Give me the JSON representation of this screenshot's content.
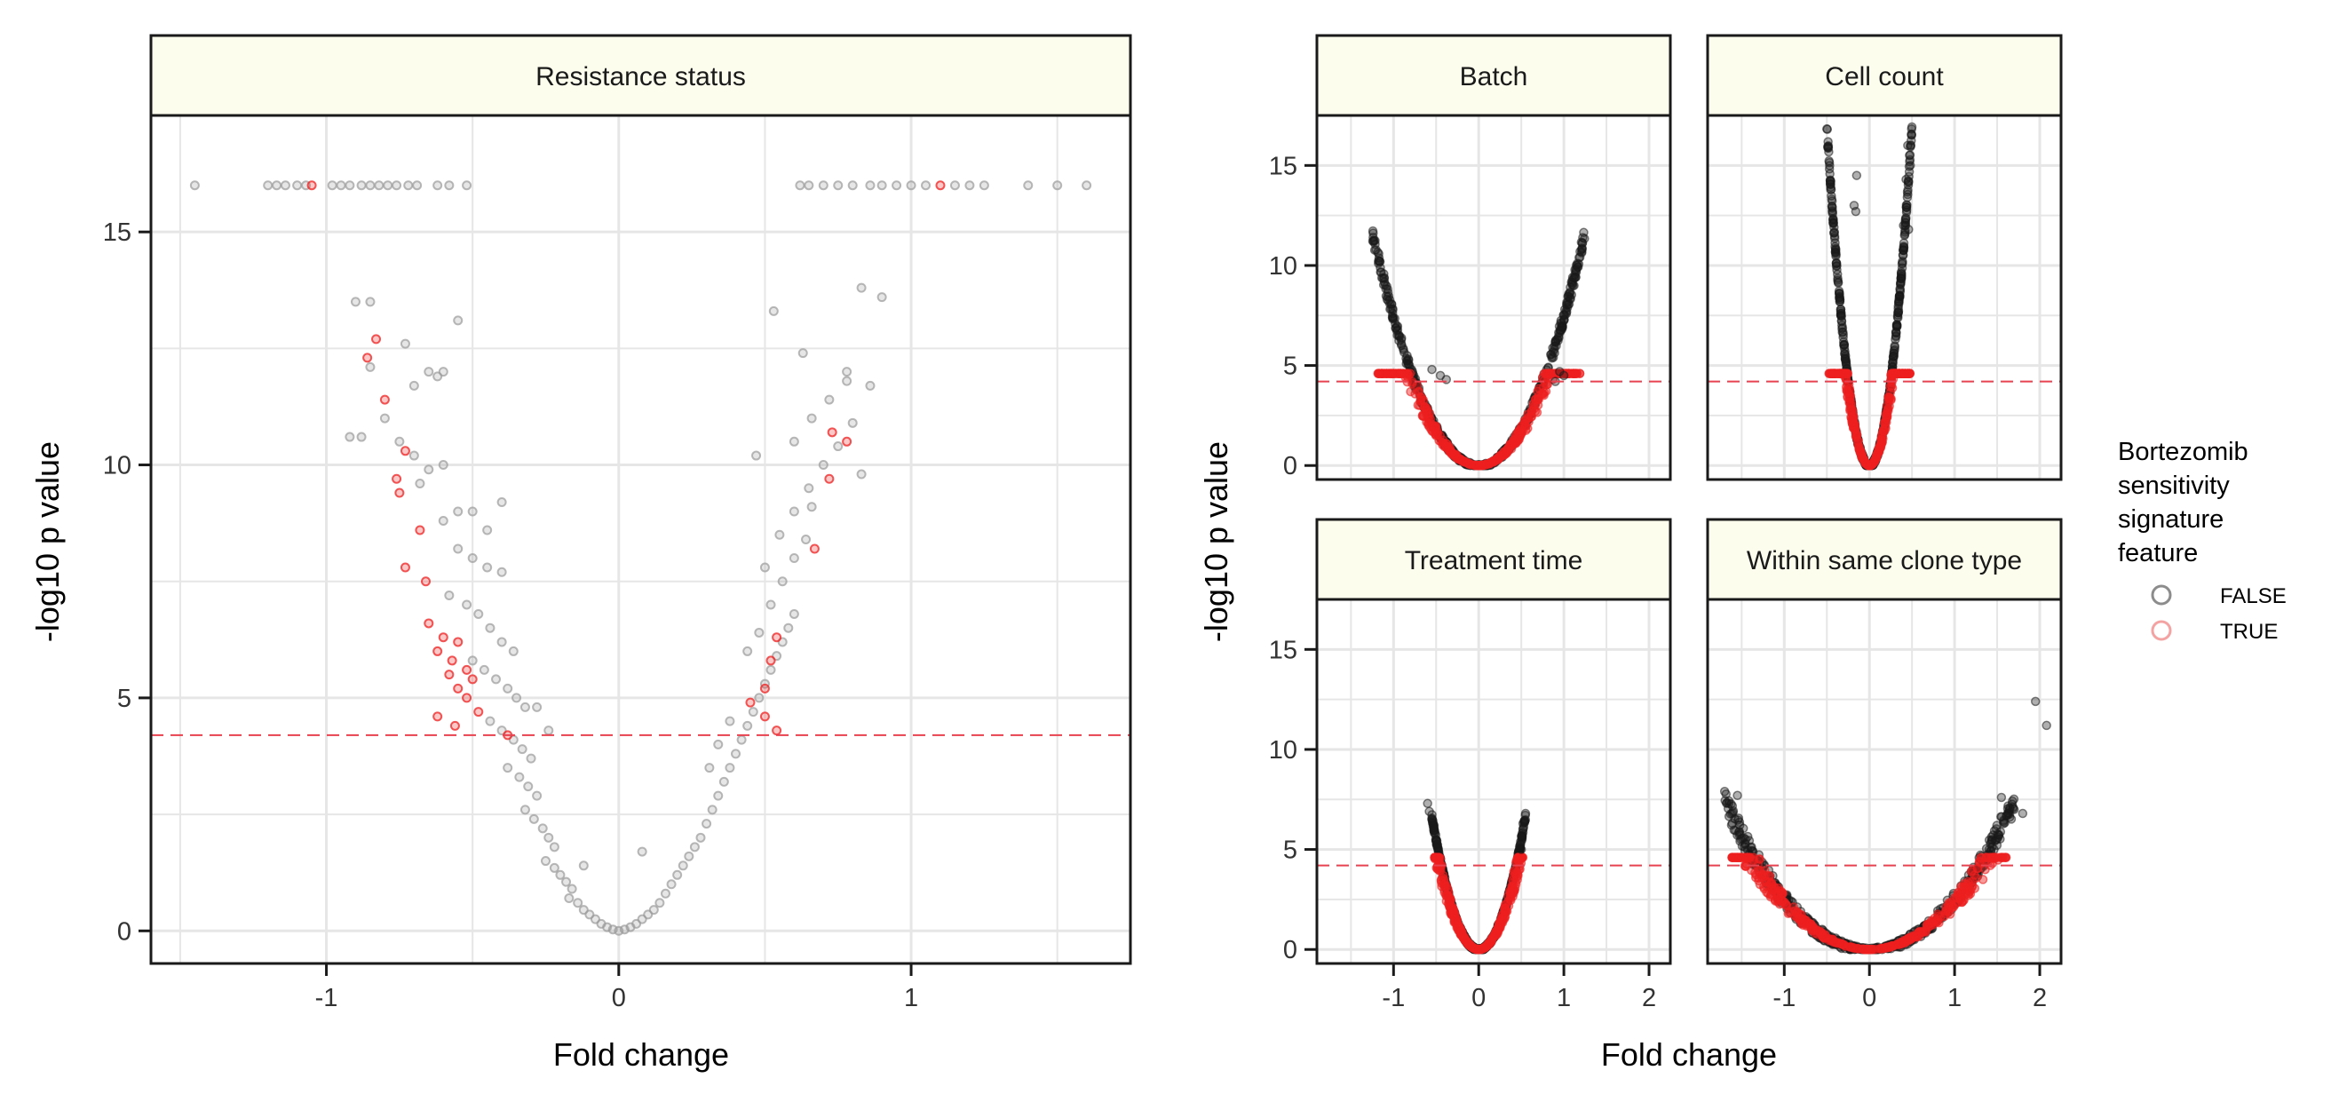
{
  "figure": {
    "x_title": "Fold change",
    "y_title": "-log10 p value"
  },
  "legend": {
    "title_lines": [
      "Bortezomib",
      "sensitivity",
      "signature",
      "feature"
    ],
    "items": [
      {
        "label": "FALSE",
        "color": "#8c8c8c"
      },
      {
        "label": "TRUE",
        "color": "#f4a3a3"
      }
    ]
  },
  "colors": {
    "strip_fill": "#fdfdee",
    "grid": "#e6e6e6",
    "threshold": "#e8414f",
    "false_light": "#9a9a9a",
    "false_dark": "#1a1a1a",
    "true": "#ee2020"
  },
  "chart_data": [
    {
      "type": "scatter",
      "title": "Resistance status",
      "xlim": [
        -1.6,
        1.75
      ],
      "ylim": [
        -0.7,
        17.5
      ],
      "xticks": [
        -1,
        0,
        1
      ],
      "yticks": [
        0,
        5,
        10,
        15
      ],
      "threshold_y": 4.2,
      "style": "light",
      "series": [
        {
          "name": "FALSE",
          "points": [
            [
              -1.45,
              16
            ],
            [
              -1.2,
              16
            ],
            [
              -1.17,
              16
            ],
            [
              -1.14,
              16
            ],
            [
              -1.1,
              16
            ],
            [
              -1.07,
              16
            ],
            [
              -0.98,
              16
            ],
            [
              -0.95,
              16
            ],
            [
              -0.92,
              16
            ],
            [
              -0.88,
              16
            ],
            [
              -0.85,
              16
            ],
            [
              -0.82,
              16
            ],
            [
              -0.79,
              16
            ],
            [
              -0.76,
              16
            ],
            [
              -0.72,
              16
            ],
            [
              -0.69,
              16
            ],
            [
              -0.62,
              16
            ],
            [
              -0.58,
              16
            ],
            [
              -0.52,
              16
            ],
            [
              0.62,
              16
            ],
            [
              0.65,
              16
            ],
            [
              0.7,
              16
            ],
            [
              0.75,
              16
            ],
            [
              0.8,
              16
            ],
            [
              0.86,
              16
            ],
            [
              0.9,
              16
            ],
            [
              0.95,
              16
            ],
            [
              1.0,
              16
            ],
            [
              1.05,
              16
            ],
            [
              1.15,
              16
            ],
            [
              1.2,
              16
            ],
            [
              1.25,
              16
            ],
            [
              1.4,
              16
            ],
            [
              1.5,
              16
            ],
            [
              1.6,
              16
            ],
            [
              -0.9,
              13.5
            ],
            [
              -0.85,
              13.5
            ],
            [
              -0.55,
              13.1
            ],
            [
              -0.92,
              10.6
            ],
            [
              -0.88,
              10.6
            ],
            [
              0.9,
              13.6
            ],
            [
              0.83,
              13.8
            ],
            [
              0.53,
              13.3
            ],
            [
              0.47,
              10.2
            ],
            [
              0.63,
              12.4
            ],
            [
              0.78,
              12.0
            ],
            [
              0.86,
              11.7
            ],
            [
              -0.85,
              12.1
            ],
            [
              -0.8,
              11.0
            ],
            [
              -0.73,
              12.6
            ],
            [
              -0.7,
              11.7
            ],
            [
              -0.65,
              12.0
            ],
            [
              -0.62,
              11.9
            ],
            [
              -0.6,
              12.0
            ],
            [
              -0.75,
              10.5
            ],
            [
              -0.7,
              10.2
            ],
            [
              -0.65,
              9.9
            ],
            [
              -0.6,
              10.0
            ],
            [
              -0.55,
              9.0
            ],
            [
              -0.5,
              9.0
            ],
            [
              -0.45,
              8.6
            ],
            [
              -0.4,
              9.2
            ],
            [
              -0.68,
              9.6
            ],
            [
              -0.6,
              8.8
            ],
            [
              -0.55,
              8.2
            ],
            [
              -0.5,
              8.0
            ],
            [
              -0.45,
              7.8
            ],
            [
              -0.4,
              7.7
            ],
            [
              -0.58,
              7.2
            ],
            [
              -0.52,
              7.0
            ],
            [
              -0.48,
              6.8
            ],
            [
              -0.44,
              6.5
            ],
            [
              -0.4,
              6.2
            ],
            [
              -0.36,
              6.0
            ],
            [
              -0.5,
              5.8
            ],
            [
              -0.46,
              5.6
            ],
            [
              -0.42,
              5.4
            ],
            [
              -0.38,
              5.2
            ],
            [
              -0.35,
              5.0
            ],
            [
              -0.32,
              4.8
            ],
            [
              -0.44,
              4.5
            ],
            [
              -0.4,
              4.3
            ],
            [
              -0.36,
              4.1
            ],
            [
              -0.33,
              3.9
            ],
            [
              -0.3,
              3.7
            ],
            [
              -0.38,
              3.5
            ],
            [
              -0.34,
              3.3
            ],
            [
              -0.31,
              3.1
            ],
            [
              -0.28,
              2.9
            ],
            [
              -0.32,
              2.6
            ],
            [
              -0.29,
              2.4
            ],
            [
              -0.26,
              2.2
            ],
            [
              -0.24,
              2.0
            ],
            [
              -0.22,
              1.8
            ],
            [
              -0.25,
              1.5
            ],
            [
              -0.22,
              1.35
            ],
            [
              -0.2,
              1.2
            ],
            [
              -0.18,
              1.05
            ],
            [
              -0.16,
              0.9
            ],
            [
              -0.17,
              0.7
            ],
            [
              -0.14,
              0.6
            ],
            [
              -0.12,
              0.45
            ],
            [
              -0.1,
              0.35
            ],
            [
              -0.08,
              0.25
            ],
            [
              -0.06,
              0.15
            ],
            [
              -0.04,
              0.08
            ],
            [
              -0.02,
              0.03
            ],
            [
              0,
              0.0
            ],
            [
              0.02,
              0.03
            ],
            [
              0.04,
              0.08
            ],
            [
              0.06,
              0.15
            ],
            [
              0.08,
              0.25
            ],
            [
              0.1,
              0.35
            ],
            [
              0.12,
              0.45
            ],
            [
              0.14,
              0.6
            ],
            [
              0.16,
              0.8
            ],
            [
              0.18,
              1.0
            ],
            [
              0.2,
              1.2
            ],
            [
              0.22,
              1.4
            ],
            [
              0.24,
              1.6
            ],
            [
              0.26,
              1.8
            ],
            [
              0.28,
              2.0
            ],
            [
              0.3,
              2.3
            ],
            [
              0.32,
              2.6
            ],
            [
              0.34,
              2.9
            ],
            [
              0.36,
              3.2
            ],
            [
              0.38,
              3.5
            ],
            [
              0.4,
              3.8
            ],
            [
              0.42,
              4.1
            ],
            [
              0.44,
              4.4
            ],
            [
              0.46,
              4.7
            ],
            [
              0.48,
              5.0
            ],
            [
              0.5,
              5.3
            ],
            [
              0.52,
              5.6
            ],
            [
              0.54,
              5.9
            ],
            [
              0.56,
              6.2
            ],
            [
              0.58,
              6.5
            ],
            [
              0.6,
              6.8
            ],
            [
              0.44,
              6.0
            ],
            [
              0.48,
              6.4
            ],
            [
              0.52,
              7.0
            ],
            [
              0.56,
              7.5
            ],
            [
              0.6,
              8.0
            ],
            [
              0.64,
              8.4
            ],
            [
              0.5,
              7.8
            ],
            [
              0.55,
              8.5
            ],
            [
              0.6,
              9.0
            ],
            [
              0.65,
              9.5
            ],
            [
              0.7,
              10.0
            ],
            [
              0.75,
              10.4
            ],
            [
              0.8,
              10.9
            ],
            [
              0.66,
              11.0
            ],
            [
              0.72,
              11.4
            ],
            [
              0.78,
              11.8
            ],
            [
              0.6,
              10.5
            ],
            [
              0.66,
              9.1
            ],
            [
              0.83,
              9.8
            ],
            [
              0.38,
              4.5
            ],
            [
              0.34,
              4.0
            ],
            [
              0.31,
              3.5
            ],
            [
              0.08,
              1.7
            ],
            [
              -0.12,
              1.4
            ],
            [
              -0.28,
              4.8
            ],
            [
              -0.24,
              4.3
            ]
          ]
        },
        {
          "name": "TRUE",
          "points": [
            [
              -1.05,
              16
            ],
            [
              1.1,
              16
            ],
            [
              -0.83,
              12.7
            ],
            [
              -0.86,
              12.3
            ],
            [
              -0.8,
              11.4
            ],
            [
              -0.73,
              10.3
            ],
            [
              -0.76,
              9.7
            ],
            [
              -0.75,
              9.4
            ],
            [
              -0.68,
              8.6
            ],
            [
              -0.73,
              7.8
            ],
            [
              -0.66,
              7.5
            ],
            [
              -0.65,
              6.6
            ],
            [
              -0.6,
              6.3
            ],
            [
              -0.55,
              6.2
            ],
            [
              -0.62,
              6.0
            ],
            [
              -0.57,
              5.8
            ],
            [
              -0.52,
              5.6
            ],
            [
              -0.58,
              5.5
            ],
            [
              -0.5,
              5.4
            ],
            [
              -0.55,
              5.2
            ],
            [
              -0.52,
              5.0
            ],
            [
              -0.48,
              4.7
            ],
            [
              -0.62,
              4.6
            ],
            [
              -0.56,
              4.4
            ],
            [
              -0.38,
              4.2
            ],
            [
              0.73,
              10.7
            ],
            [
              0.78,
              10.5
            ],
            [
              0.72,
              9.7
            ],
            [
              0.54,
              6.3
            ],
            [
              0.52,
              5.8
            ],
            [
              0.5,
              5.2
            ],
            [
              0.45,
              4.9
            ],
            [
              0.5,
              4.6
            ],
            [
              0.54,
              4.3
            ],
            [
              0.67,
              8.2
            ]
          ]
        }
      ]
    },
    {
      "type": "scatter",
      "title": "Batch",
      "xlim": [
        -1.9,
        2.25
      ],
      "ylim": [
        -0.7,
        17.5
      ],
      "xticks": [
        -1,
        0,
        1,
        2
      ],
      "yticks": [
        0,
        5,
        10,
        15
      ],
      "threshold_y": 4.2,
      "style": "dark",
      "curve": {
        "k": 7.5,
        "spread_x": 1.25,
        "noise": 0.5
      },
      "extremes": [
        [
          -0.55,
          4.8
        ],
        [
          -0.45,
          4.5
        ],
        [
          -0.38,
          4.3
        ],
        [
          0.95,
          4.7
        ],
        [
          1.0,
          4.5
        ],
        [
          0.9,
          4.2
        ]
      ]
    },
    {
      "type": "scatter",
      "title": "Cell count",
      "xlim": [
        -1.9,
        2.25
      ],
      "ylim": [
        -0.7,
        17.5
      ],
      "xticks": [
        -1,
        0,
        1,
        2
      ],
      "yticks": [
        0,
        5,
        10,
        15
      ],
      "threshold_y": 4.2,
      "style": "dark",
      "curve": {
        "k": 68,
        "spread_x": 0.5,
        "noise": 0.6
      },
      "extremes": [
        [
          -0.15,
          14.5
        ],
        [
          0.45,
          16.0
        ],
        [
          0.47,
          15.5
        ],
        [
          0.48,
          15.0
        ],
        [
          0.43,
          14.3
        ],
        [
          0.46,
          11.8
        ],
        [
          -0.18,
          13.0
        ],
        [
          -0.16,
          12.7
        ],
        [
          0.4,
          12.0
        ]
      ]
    },
    {
      "type": "scatter",
      "title": "Treatment time",
      "xlim": [
        -1.9,
        2.25
      ],
      "ylim": [
        -0.7,
        17.5
      ],
      "xticks": [
        -1,
        0,
        1,
        2
      ],
      "yticks": [
        0,
        5,
        10,
        15
      ],
      "threshold_y": 4.2,
      "style": "dark",
      "curve": {
        "k": 22,
        "spread_x": 0.55,
        "noise": 0.4
      },
      "extremes": [
        [
          -0.6,
          7.3
        ],
        [
          -0.58,
          6.9
        ],
        [
          0.55,
          6.8
        ],
        [
          0.52,
          6.3
        ],
        [
          -0.5,
          5.5
        ],
        [
          0.5,
          5.0
        ]
      ]
    },
    {
      "type": "scatter",
      "title": "Within same clone type",
      "xlim": [
        -1.9,
        2.25
      ],
      "ylim": [
        -0.7,
        17.5
      ],
      "xticks": [
        -1,
        0,
        1,
        2
      ],
      "yticks": [
        0,
        5,
        10,
        15
      ],
      "threshold_y": 4.2,
      "style": "dark",
      "curve": {
        "k": 2.6,
        "spread_x": 1.7,
        "noise": 0.6
      },
      "extremes": [
        [
          1.95,
          12.4
        ],
        [
          2.08,
          11.2
        ],
        [
          -1.7,
          7.9
        ],
        [
          -1.55,
          7.7
        ],
        [
          1.55,
          7.6
        ],
        [
          1.7,
          7.0
        ],
        [
          1.8,
          6.8
        ],
        [
          -1.65,
          7.3
        ]
      ]
    }
  ]
}
